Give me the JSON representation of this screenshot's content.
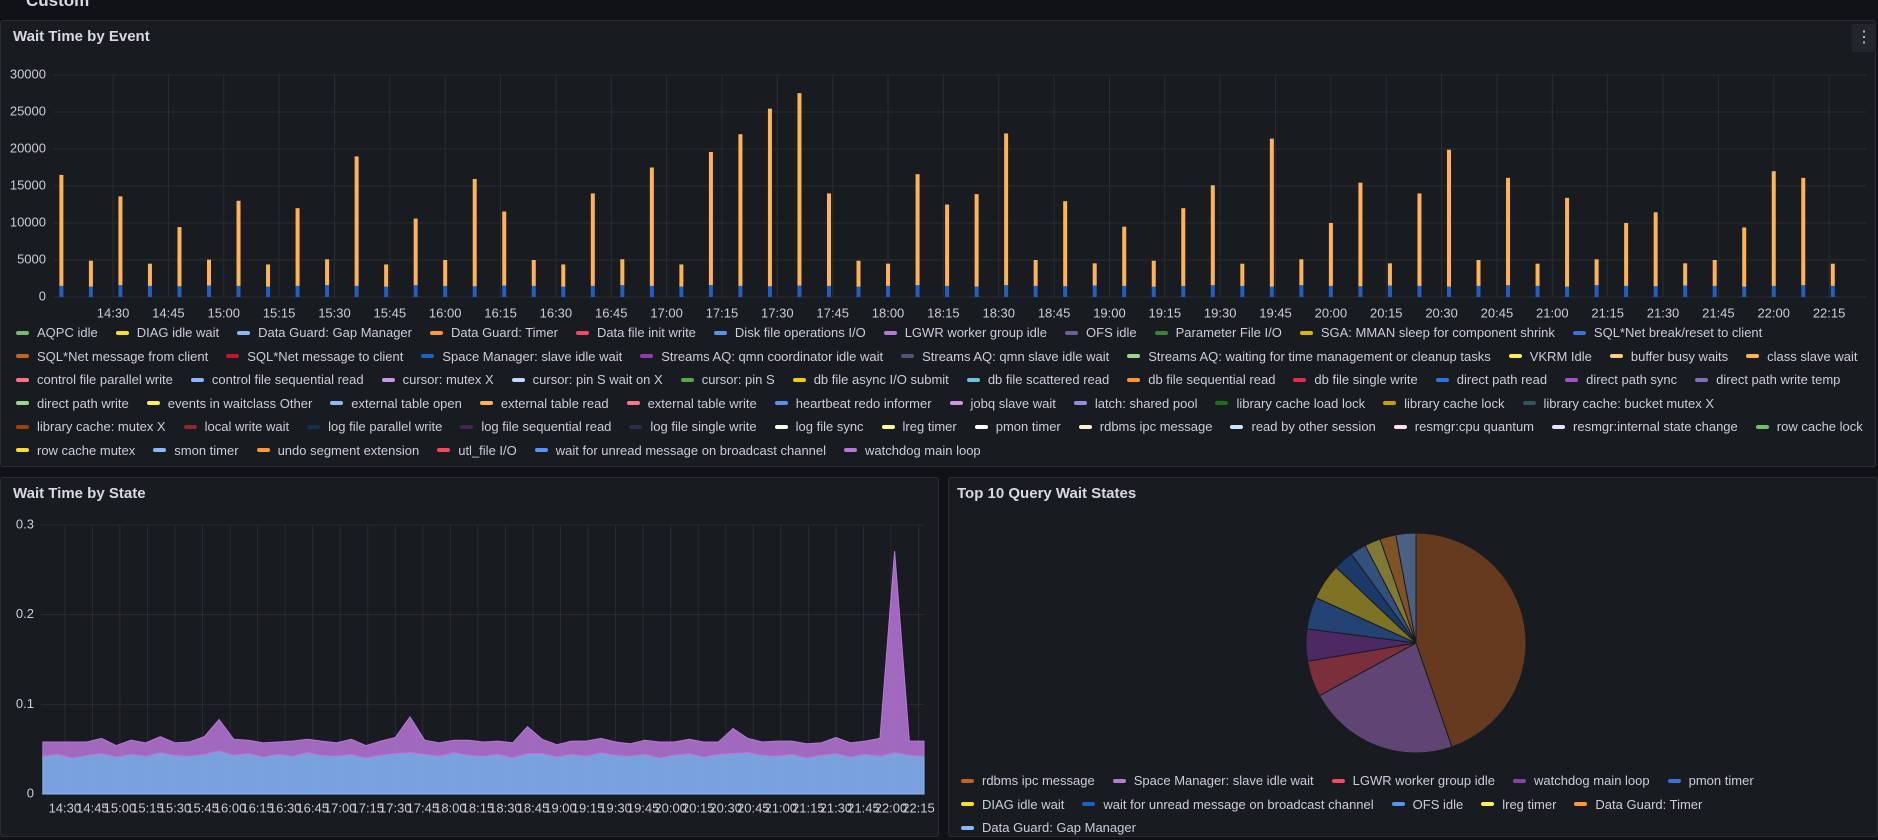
{
  "header": {
    "title": "Custom"
  },
  "chart_data": [
    {
      "type": "bar",
      "title": "Wait Time by Event",
      "stacked": true,
      "grid": true,
      "x": [
        "14:16",
        "14:24",
        "14:32",
        "14:40",
        "14:48",
        "14:56",
        "15:04",
        "15:12",
        "15:20",
        "15:28",
        "15:36",
        "15:44",
        "15:52",
        "16:00",
        "16:08",
        "16:16",
        "16:24",
        "16:32",
        "16:40",
        "16:48",
        "16:56",
        "17:04",
        "17:12",
        "17:20",
        "17:28",
        "17:36",
        "17:44",
        "17:52",
        "18:00",
        "18:08",
        "18:16",
        "18:24",
        "18:32",
        "18:40",
        "18:48",
        "18:56",
        "19:04",
        "19:12",
        "19:20",
        "19:28",
        "19:36",
        "19:44",
        "19:52",
        "20:00",
        "20:08",
        "20:16",
        "20:24",
        "20:32",
        "20:40",
        "20:48",
        "20:56",
        "21:04",
        "21:12",
        "21:20",
        "21:28",
        "21:36",
        "21:44",
        "21:52",
        "22:00",
        "22:08",
        "22:16"
      ],
      "xlim": [
        "14:14",
        "22:25"
      ],
      "xticks": [
        "14:30",
        "14:45",
        "15:00",
        "15:15",
        "15:30",
        "15:45",
        "16:00",
        "16:15",
        "16:30",
        "16:45",
        "17:00",
        "17:15",
        "17:30",
        "17:45",
        "18:00",
        "18:15",
        "18:30",
        "18:45",
        "19:00",
        "19:15",
        "19:30",
        "19:45",
        "20:00",
        "20:15",
        "20:30",
        "20:45",
        "21:00",
        "21:15",
        "21:30",
        "21:45",
        "22:00",
        "22:15"
      ],
      "ylim": [
        0,
        30000
      ],
      "yticks": [
        0,
        5000,
        10000,
        15000,
        20000,
        25000,
        30000
      ],
      "series": [
        {
          "color": "#1f60c4",
          "values": [
            1500,
            1400,
            1600,
            1500,
            1450,
            1550,
            1500,
            1400,
            1500,
            1600,
            1500,
            1400,
            1600,
            1500,
            1450,
            1550,
            1500,
            1400,
            1500,
            1600,
            1500,
            1400,
            1600,
            1500,
            1450,
            1550,
            1500,
            1400,
            1500,
            1600,
            1500,
            1400,
            1600,
            1500,
            1450,
            1550,
            1500,
            1400,
            1500,
            1600,
            1500,
            1400,
            1600,
            1500,
            1450,
            1550,
            1500,
            1400,
            1500,
            1600,
            1500,
            1400,
            1600,
            1500,
            1450,
            1550,
            1500,
            1400,
            1500,
            1600,
            1500
          ]
        },
        {
          "color": "#ffb357",
          "values": [
            15000,
            3500,
            12000,
            3000,
            8000,
            3500,
            11500,
            3000,
            10500,
            3500,
            17500,
            3000,
            9000,
            3500,
            14500,
            10000,
            3500,
            3000,
            12500,
            3500,
            16000,
            3000,
            18000,
            20500,
            24000,
            26000,
            12500,
            3500,
            3000,
            15000,
            11000,
            12500,
            20500,
            3500,
            11500,
            3000,
            8000,
            3500,
            10500,
            13500,
            3000,
            20000,
            3500,
            8500,
            14000,
            3000,
            12500,
            18500,
            3500,
            14500,
            3000,
            12000,
            3500,
            8500,
            10000,
            3000,
            3500,
            8000,
            15500,
            14500,
            3000
          ]
        }
      ],
      "legend": [
        {
          "name": "AQPC idle",
          "color": "#73bf69"
        },
        {
          "name": "DIAG idle wait",
          "color": "#fade2a"
        },
        {
          "name": "Data Guard: Gap Manager",
          "color": "#8ab8ff"
        },
        {
          "name": "Data Guard: Timer",
          "color": "#ff9830"
        },
        {
          "name": "Data file init write",
          "color": "#f2495c"
        },
        {
          "name": "Disk file operations I/O",
          "color": "#5794f2"
        },
        {
          "name": "LGWR worker group idle",
          "color": "#b877d9"
        },
        {
          "name": "OFS idle",
          "color": "#705da0"
        },
        {
          "name": "Parameter File I/O",
          "color": "#37872d"
        },
        {
          "name": "SGA: MMAN sleep for component shrink",
          "color": "#e0b400"
        },
        {
          "name": "SQL*Net break/reset to client",
          "color": "#3274d9"
        },
        {
          "name": "SQL*Net message from client",
          "color": "#c4621e"
        },
        {
          "name": "SQL*Net message to client",
          "color": "#c4162a"
        },
        {
          "name": "Space Manager: slave idle wait",
          "color": "#1f60c4"
        },
        {
          "name": "Streams AQ: qmn coordinator idle wait",
          "color": "#8f3bb8"
        },
        {
          "name": "Streams AQ: qmn slave idle wait",
          "color": "#4a5578"
        },
        {
          "name": "Streams AQ: waiting for time management or cleanup tasks",
          "color": "#96d98d"
        },
        {
          "name": "VKRM Idle",
          "color": "#ffee52"
        },
        {
          "name": "buffer busy waits",
          "color": "#ffcb7d"
        },
        {
          "name": "class slave wait",
          "color": "#ffb357"
        },
        {
          "name": "control file parallel write",
          "color": "#ff7383"
        },
        {
          "name": "control file sequential read",
          "color": "#8ab8ff"
        },
        {
          "name": "cursor: mutex X",
          "color": "#ca95e5"
        },
        {
          "name": "cursor: pin S wait on X",
          "color": "#c0d8ff"
        },
        {
          "name": "cursor: pin S",
          "color": "#56a64b"
        },
        {
          "name": "db file async I/O submit",
          "color": "#f2cc0c"
        },
        {
          "name": "db file scattered read",
          "color": "#6cc2e0"
        },
        {
          "name": "db file sequential read",
          "color": "#ff9830"
        },
        {
          "name": "db file single write",
          "color": "#e02f44"
        },
        {
          "name": "direct path read",
          "color": "#3274d9"
        },
        {
          "name": "direct path sync",
          "color": "#a352cc"
        },
        {
          "name": "direct path write temp",
          "color": "#806eb7"
        },
        {
          "name": "direct path write",
          "color": "#96d98d"
        },
        {
          "name": "events in waitclass Other",
          "color": "#ffee52"
        },
        {
          "name": "external table open",
          "color": "#8ab8ff"
        },
        {
          "name": "external table read",
          "color": "#ffb357"
        },
        {
          "name": "external table write",
          "color": "#ff7383"
        },
        {
          "name": "heartbeat redo informer",
          "color": "#5794f2"
        },
        {
          "name": "jobq slave wait",
          "color": "#ca95e5"
        },
        {
          "name": "latch: shared pool",
          "color": "#8f8fdf"
        },
        {
          "name": "library cache load lock",
          "color": "#19730e"
        },
        {
          "name": "library cache lock",
          "color": "#cc9d00"
        },
        {
          "name": "library cache: bucket mutex X",
          "color": "#2f575e"
        },
        {
          "name": "library cache: mutex X",
          "color": "#99440a"
        },
        {
          "name": "local write wait",
          "color": "#8e2a2a"
        },
        {
          "name": "log file parallel write",
          "color": "#12304d"
        },
        {
          "name": "log file sequential read",
          "color": "#4a1f5a"
        },
        {
          "name": "log file single write",
          "color": "#2e2b50"
        },
        {
          "name": "log file sync",
          "color": "#f4fce4"
        },
        {
          "name": "lreg timer",
          "color": "#fff899"
        },
        {
          "name": "pmon timer",
          "color": "#ffffff"
        },
        {
          "name": "rdbms ipc message",
          "color": "#fff0d0"
        },
        {
          "name": "read by other session",
          "color": "#c8e8ff"
        },
        {
          "name": "resmgr:cpu quantum",
          "color": "#ffe0f0"
        },
        {
          "name": "resmgr:internal state change",
          "color": "#e8e0ff"
        },
        {
          "name": "row cache lock",
          "color": "#73bf69"
        },
        {
          "name": "row cache mutex",
          "color": "#fade2a"
        },
        {
          "name": "smon timer",
          "color": "#8ab8ff"
        },
        {
          "name": "undo segment extension",
          "color": "#ff9830"
        },
        {
          "name": "utl_file I/O",
          "color": "#f2495c"
        },
        {
          "name": "wait for unread message on broadcast channel",
          "color": "#5794f2"
        },
        {
          "name": "watchdog main loop",
          "color": "#b877d9"
        }
      ]
    },
    {
      "type": "area",
      "title": "Wait Time by State",
      "stacked": true,
      "grid": true,
      "x": [
        "14:18",
        "14:26",
        "14:34",
        "14:42",
        "14:50",
        "14:58",
        "15:06",
        "15:14",
        "15:22",
        "15:30",
        "15:38",
        "15:46",
        "15:54",
        "16:02",
        "16:10",
        "16:18",
        "16:26",
        "16:34",
        "16:42",
        "16:50",
        "16:58",
        "17:06",
        "17:14",
        "17:22",
        "17:30",
        "17:38",
        "17:46",
        "17:54",
        "18:02",
        "18:10",
        "18:18",
        "18:26",
        "18:34",
        "18:42",
        "18:50",
        "18:58",
        "19:06",
        "19:14",
        "19:22",
        "19:30",
        "19:38",
        "19:46",
        "19:54",
        "20:02",
        "20:10",
        "20:18",
        "20:26",
        "20:34",
        "20:42",
        "20:50",
        "20:58",
        "21:06",
        "21:14",
        "21:22",
        "21:30",
        "21:38",
        "21:46",
        "21:54",
        "22:02",
        "22:10",
        "22:18"
      ],
      "xlim": [
        "14:17",
        "22:18"
      ],
      "xticks": [
        "14:30",
        "14:45",
        "15:00",
        "15:15",
        "15:30",
        "15:45",
        "16:00",
        "16:15",
        "16:30",
        "16:45",
        "17:00",
        "17:15",
        "17:30",
        "17:45",
        "18:00",
        "18:15",
        "18:30",
        "18:45",
        "19:00",
        "19:15",
        "19:30",
        "19:45",
        "20:00",
        "20:15",
        "20:30",
        "20:45",
        "21:00",
        "21:15",
        "21:30",
        "21:45",
        "22:00",
        "22:15"
      ],
      "ylim": [
        0,
        0.3
      ],
      "yticks": [
        0,
        0.1,
        0.2,
        0.3
      ],
      "series": [
        {
          "color": "#8ab8ff",
          "values": [
            0.042,
            0.044,
            0.04,
            0.043,
            0.045,
            0.041,
            0.044,
            0.042,
            0.046,
            0.043,
            0.042,
            0.044,
            0.048,
            0.043,
            0.045,
            0.041,
            0.044,
            0.042,
            0.046,
            0.043,
            0.042,
            0.044,
            0.04,
            0.043,
            0.045,
            0.046,
            0.044,
            0.042,
            0.046,
            0.043,
            0.042,
            0.044,
            0.04,
            0.045,
            0.045,
            0.041,
            0.044,
            0.042,
            0.046,
            0.043,
            0.042,
            0.044,
            0.04,
            0.043,
            0.045,
            0.041,
            0.044,
            0.045,
            0.046,
            0.043,
            0.042,
            0.044,
            0.04,
            0.043,
            0.045,
            0.041,
            0.044,
            0.042,
            0.046,
            0.043,
            0.042
          ]
        },
        {
          "color": "#b877d9",
          "values": [
            0.016,
            0.014,
            0.018,
            0.015,
            0.017,
            0.013,
            0.016,
            0.015,
            0.018,
            0.014,
            0.016,
            0.02,
            0.035,
            0.018,
            0.015,
            0.016,
            0.014,
            0.017,
            0.015,
            0.016,
            0.015,
            0.017,
            0.014,
            0.016,
            0.018,
            0.04,
            0.016,
            0.015,
            0.014,
            0.017,
            0.016,
            0.015,
            0.017,
            0.03,
            0.016,
            0.014,
            0.015,
            0.017,
            0.016,
            0.015,
            0.014,
            0.016,
            0.018,
            0.015,
            0.016,
            0.017,
            0.014,
            0.028,
            0.016,
            0.015,
            0.017,
            0.015,
            0.016,
            0.014,
            0.018,
            0.016,
            0.015,
            0.02,
            0.225,
            0.016,
            0.017
          ]
        }
      ]
    },
    {
      "type": "pie",
      "title": "Top 10 Query Wait States",
      "categories": [
        "rdbms ipc message",
        "Space Manager: slave idle wait",
        "LGWR worker group idle",
        "watchdog main loop",
        "pmon timer",
        "DIAG idle wait",
        "wait for unread message on broadcast channel",
        "OFS idle",
        "lreg timer",
        "Data Guard: Timer",
        "Data Guard: Gap Manager"
      ],
      "values": [
        38,
        19,
        4.5,
        4,
        4,
        4.5,
        2.5,
        2,
        2,
        2,
        2.5
      ],
      "colors": [
        "#c4621e",
        "#b877d9",
        "#f2495c",
        "#8f3bb8",
        "#3274d9",
        "#fade2a",
        "#1f60c4",
        "#5794f2",
        "#ffee52",
        "#ff9830",
        "#8ab8ff"
      ]
    }
  ]
}
